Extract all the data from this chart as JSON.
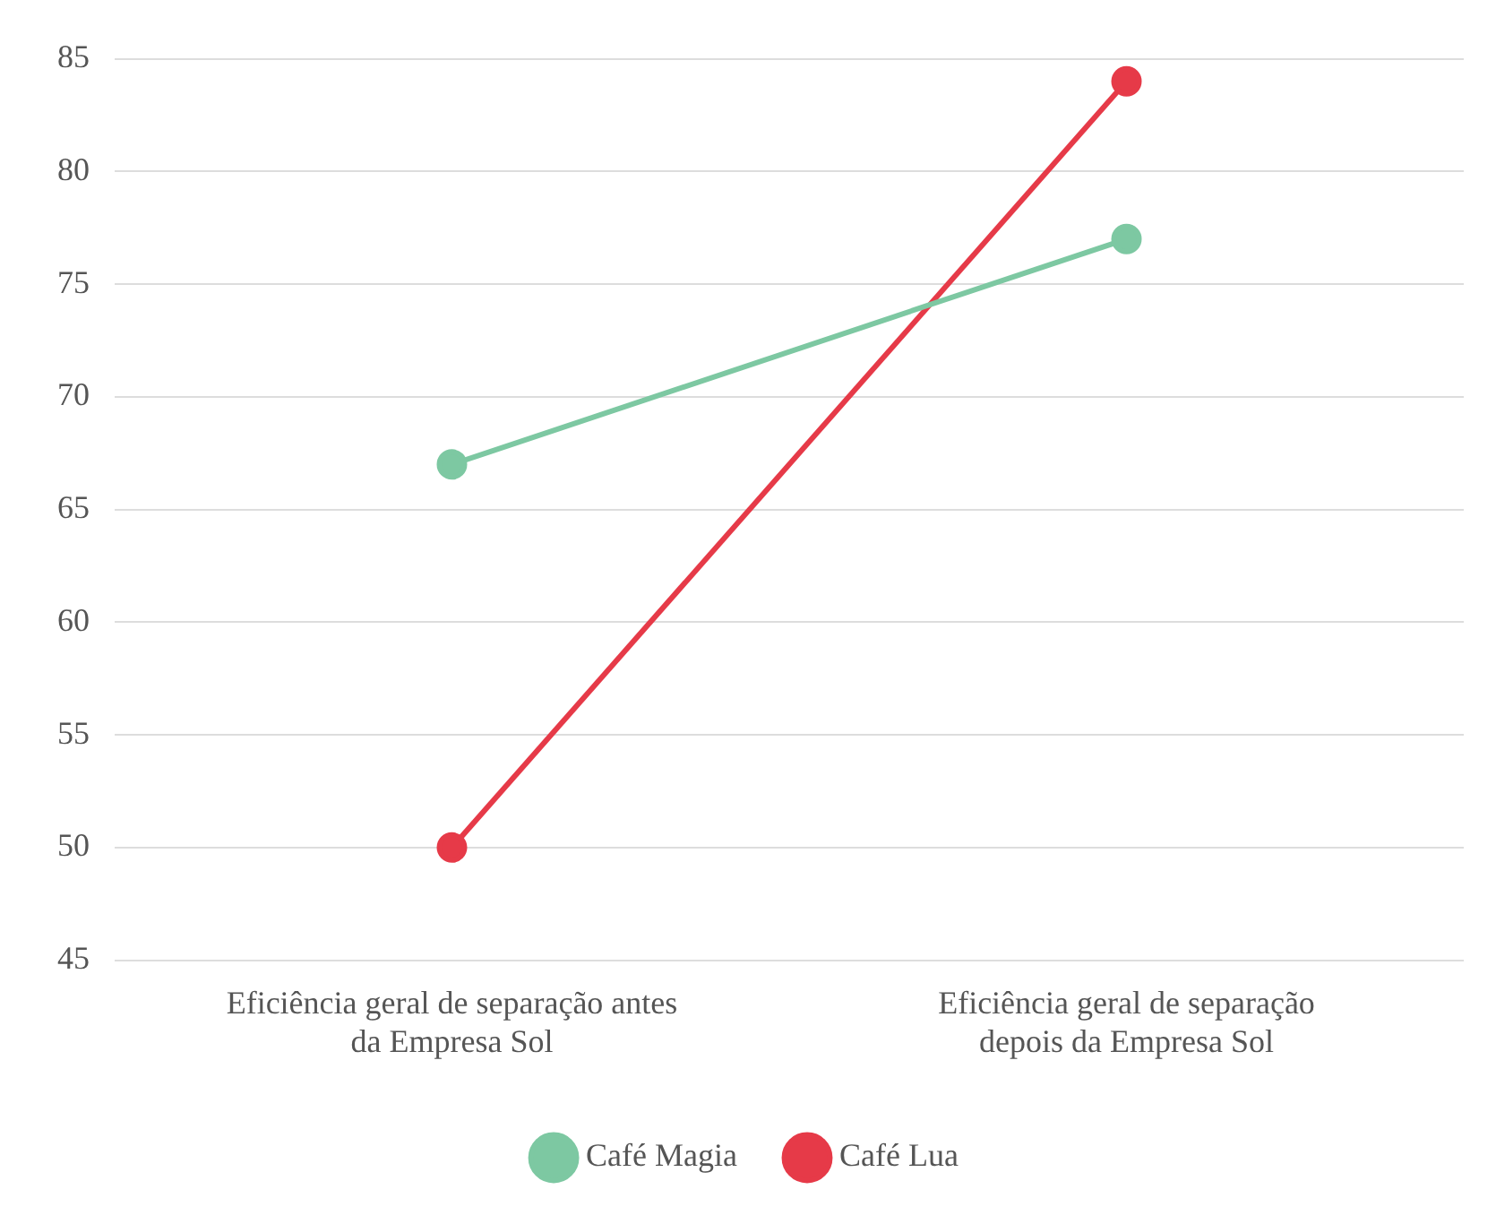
{
  "chart_data": {
    "type": "line",
    "categories": [
      "Eficiência geral de separação antes da Empresa Sol",
      "Eficiência geral de separação depois da Empresa Sol"
    ],
    "series": [
      {
        "name": "Café Magia",
        "color": "#7dc8a2",
        "values": [
          67,
          77
        ]
      },
      {
        "name": "Café Lua",
        "color": "#e63a48",
        "values": [
          50,
          84
        ]
      }
    ],
    "ylim": [
      45,
      85
    ],
    "yticks": [
      45,
      50,
      55,
      60,
      65,
      70,
      75,
      80,
      85
    ],
    "grid": "y",
    "legend": "bottom",
    "marker": "circle",
    "line_style": "solid"
  }
}
